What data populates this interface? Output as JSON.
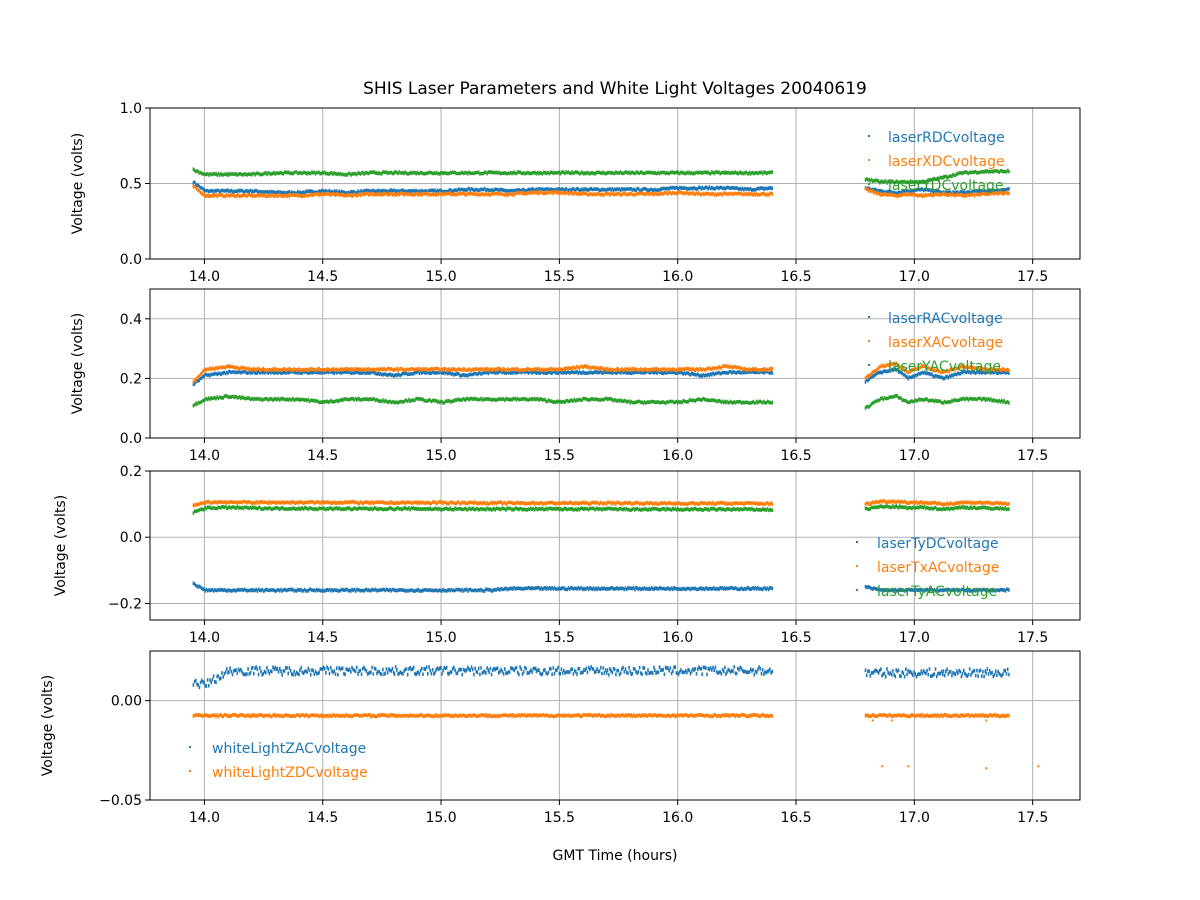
{
  "chart_data": {
    "type": "scatter",
    "title": "SHIS Laser Parameters and White Light Voltages 20040619",
    "xlabel": "GMT Time (hours)",
    "xlim": [
      13.77,
      17.7
    ],
    "xticks": [
      "14.0",
      "14.5",
      "15.0",
      "15.5",
      "16.0",
      "16.5",
      "17.0",
      "17.5"
    ],
    "grid": true,
    "x": [
      13.95,
      14.0,
      14.1,
      14.2,
      14.3,
      14.4,
      14.5,
      14.6,
      14.7,
      14.8,
      14.9,
      15.0,
      15.1,
      15.2,
      15.3,
      15.4,
      15.5,
      15.6,
      15.7,
      15.8,
      15.9,
      16.0,
      16.1,
      16.2,
      16.3,
      16.4,
      16.55,
      16.79,
      16.85,
      16.92,
      16.97,
      17.03,
      17.12,
      17.2,
      17.3,
      17.4,
      17.52
    ],
    "panels": [
      {
        "ylabel": "Voltage (volts)",
        "ylim": [
          0,
          1.0
        ],
        "yticks": [
          {
            "v": 0,
            "label": "0.0"
          },
          {
            "v": 0.5,
            "label": "0.5"
          },
          {
            "v": 1.0,
            "label": "1.0"
          }
        ],
        "legend_placement": "upper-right",
        "series": [
          {
            "name": "laserRDCvoltage",
            "color": "#1f77b4",
            "values": [
              0.51,
              0.45,
              0.45,
              0.45,
              0.44,
              0.44,
              0.45,
              0.44,
              0.45,
              0.45,
              0.45,
              0.45,
              0.46,
              0.46,
              0.45,
              0.46,
              0.46,
              0.46,
              0.46,
              0.46,
              0.46,
              0.47,
              0.47,
              0.47,
              0.46,
              0.47,
              0.47,
              0.47,
              0.45,
              0.44,
              0.45,
              0.46,
              0.44,
              0.44,
              0.45,
              0.46,
              0.47
            ]
          },
          {
            "name": "laserXDCvoltage",
            "color": "#ff7f0e",
            "values": [
              0.48,
              0.42,
              0.42,
              0.42,
              0.42,
              0.42,
              0.43,
              0.42,
              0.43,
              0.43,
              0.43,
              0.43,
              0.43,
              0.43,
              0.43,
              0.44,
              0.44,
              0.43,
              0.43,
              0.43,
              0.43,
              0.44,
              0.43,
              0.43,
              0.43,
              0.43,
              0.44,
              0.46,
              0.43,
              0.42,
              0.43,
              0.42,
              0.43,
              0.42,
              0.43,
              0.44,
              0.45
            ]
          },
          {
            "name": "laserYDCvoltage",
            "color": "#2ca02c",
            "values": [
              0.59,
              0.56,
              0.56,
              0.56,
              0.57,
              0.57,
              0.57,
              0.56,
              0.57,
              0.57,
              0.57,
              0.57,
              0.57,
              0.57,
              0.57,
              0.57,
              0.57,
              0.57,
              0.57,
              0.57,
              0.57,
              0.57,
              0.57,
              0.57,
              0.57,
              0.57,
              0.58,
              0.53,
              0.51,
              0.51,
              0.51,
              0.51,
              0.54,
              0.57,
              0.58,
              0.58,
              0.59
            ]
          }
        ]
      },
      {
        "ylabel": "Voltage (volts)",
        "ylim": [
          0,
          0.5
        ],
        "yticks": [
          {
            "v": 0,
            "label": "0.0"
          },
          {
            "v": 0.2,
            "label": "0.2"
          },
          {
            "v": 0.4,
            "label": "0.4"
          }
        ],
        "legend_placement": "upper-right",
        "series": [
          {
            "name": "laserRACvoltage",
            "color": "#1f77b4",
            "values": [
              0.18,
              0.21,
              0.22,
              0.22,
              0.22,
              0.22,
              0.22,
              0.22,
              0.22,
              0.21,
              0.22,
              0.22,
              0.21,
              0.22,
              0.22,
              0.22,
              0.22,
              0.22,
              0.22,
              0.22,
              0.22,
              0.22,
              0.21,
              0.22,
              0.22,
              0.22,
              0.21,
              0.19,
              0.22,
              0.23,
              0.2,
              0.22,
              0.2,
              0.22,
              0.22,
              0.22,
              0.21
            ]
          },
          {
            "name": "laserXACvoltage",
            "color": "#ff7f0e",
            "values": [
              0.19,
              0.23,
              0.24,
              0.23,
              0.23,
              0.23,
              0.23,
              0.23,
              0.23,
              0.23,
              0.23,
              0.23,
              0.23,
              0.23,
              0.23,
              0.23,
              0.23,
              0.24,
              0.23,
              0.23,
              0.23,
              0.23,
              0.23,
              0.24,
              0.23,
              0.23,
              0.22,
              0.2,
              0.24,
              0.25,
              0.22,
              0.24,
              0.22,
              0.24,
              0.23,
              0.23,
              0.22
            ]
          },
          {
            "name": "laserYACvoltage",
            "color": "#2ca02c",
            "values": [
              0.11,
              0.13,
              0.14,
              0.13,
              0.13,
              0.13,
              0.12,
              0.13,
              0.13,
              0.12,
              0.13,
              0.12,
              0.13,
              0.13,
              0.13,
              0.13,
              0.12,
              0.13,
              0.13,
              0.12,
              0.12,
              0.12,
              0.13,
              0.12,
              0.12,
              0.12,
              0.12,
              0.1,
              0.13,
              0.14,
              0.12,
              0.13,
              0.12,
              0.13,
              0.13,
              0.12,
              0.12
            ]
          }
        ]
      },
      {
        "ylabel": "Voltage (volts)",
        "ylim": [
          -0.25,
          0.2
        ],
        "yticks": [
          {
            "v": -0.2,
            "label": "−0.2"
          },
          {
            "v": 0,
            "label": "0.0"
          },
          {
            "v": 0.2,
            "label": "0.2"
          }
        ],
        "legend_placement": "lower-right",
        "series": [
          {
            "name": "laserTyDCvoltage",
            "color": "#1f77b4",
            "values": [
              -0.14,
              -0.16,
              -0.16,
              -0.16,
              -0.16,
              -0.16,
              -0.16,
              -0.16,
              -0.16,
              -0.16,
              -0.16,
              -0.16,
              -0.16,
              -0.16,
              -0.155,
              -0.155,
              -0.155,
              -0.155,
              -0.155,
              -0.155,
              -0.155,
              -0.155,
              -0.155,
              -0.155,
              -0.155,
              -0.155,
              -0.155,
              -0.15,
              -0.16,
              -0.16,
              -0.16,
              -0.16,
              -0.16,
              -0.16,
              -0.16,
              -0.16,
              -0.16
            ]
          },
          {
            "name": "laserTxACvoltage",
            "color": "#ff7f0e",
            "values": [
              0.095,
              0.105,
              0.106,
              0.105,
              0.105,
              0.105,
              0.105,
              0.105,
              0.104,
              0.104,
              0.104,
              0.104,
              0.104,
              0.103,
              0.103,
              0.103,
              0.103,
              0.103,
              0.103,
              0.103,
              0.102,
              0.102,
              0.102,
              0.102,
              0.102,
              0.101,
              0.1,
              0.1,
              0.108,
              0.108,
              0.105,
              0.105,
              0.1,
              0.105,
              0.104,
              0.1,
              0.097
            ]
          },
          {
            "name": "laserTyACvoltage",
            "color": "#2ca02c",
            "values": [
              0.075,
              0.088,
              0.09,
              0.088,
              0.087,
              0.087,
              0.086,
              0.086,
              0.086,
              0.086,
              0.086,
              0.085,
              0.085,
              0.085,
              0.085,
              0.085,
              0.085,
              0.085,
              0.085,
              0.084,
              0.084,
              0.084,
              0.084,
              0.084,
              0.084,
              0.083,
              0.083,
              0.085,
              0.092,
              0.092,
              0.088,
              0.09,
              0.085,
              0.09,
              0.088,
              0.086,
              0.085
            ]
          }
        ]
      },
      {
        "ylabel": "Voltage (volts)",
        "ylim": [
          -0.05,
          0.025
        ],
        "yticks": [
          {
            "v": -0.05,
            "label": "−0.05"
          },
          {
            "v": 0,
            "label": "0.00"
          }
        ],
        "legend_placement": "lower-left",
        "series": [
          {
            "name": "whiteLightZACvoltage",
            "color": "#1f77b4",
            "values": [
              0.009,
              0.008,
              0.015,
              0.015,
              0.015,
              0.015,
              0.015,
              0.015,
              0.015,
              0.015,
              0.015,
              0.015,
              0.015,
              0.015,
              0.015,
              0.015,
              0.015,
              0.015,
              0.015,
              0.015,
              0.015,
              0.015,
              0.015,
              0.015,
              0.015,
              0.015,
              0.015,
              0.014,
              0.014,
              0.014,
              0.014,
              0.014,
              0.014,
              0.014,
              0.014,
              0.014,
              0.014
            ]
          },
          {
            "name": "whiteLightZDCvoltage",
            "color": "#ff7f0e",
            "values": [
              -0.0075,
              -0.0075,
              -0.0075,
              -0.0075,
              -0.0075,
              -0.0075,
              -0.0075,
              -0.0075,
              -0.0075,
              -0.0075,
              -0.0075,
              -0.0075,
              -0.0075,
              -0.0075,
              -0.0075,
              -0.0075,
              -0.0075,
              -0.0075,
              -0.0075,
              -0.0075,
              -0.0075,
              -0.0075,
              -0.0075,
              -0.0075,
              -0.0075,
              -0.0075,
              -0.0075,
              -0.0075,
              -0.0075,
              -0.0075,
              -0.0075,
              -0.0075,
              -0.0075,
              -0.0075,
              -0.0075,
              -0.0075,
              -0.0075
            ],
            "outliers": [
              [
                16.86,
                -0.033
              ],
              [
                16.97,
                -0.033
              ],
              [
                17.3,
                -0.034
              ],
              [
                17.52,
                -0.033
              ],
              [
                16.82,
                -0.01
              ],
              [
                16.9,
                -0.01
              ],
              [
                17.3,
                -0.01
              ]
            ]
          }
        ]
      }
    ]
  }
}
